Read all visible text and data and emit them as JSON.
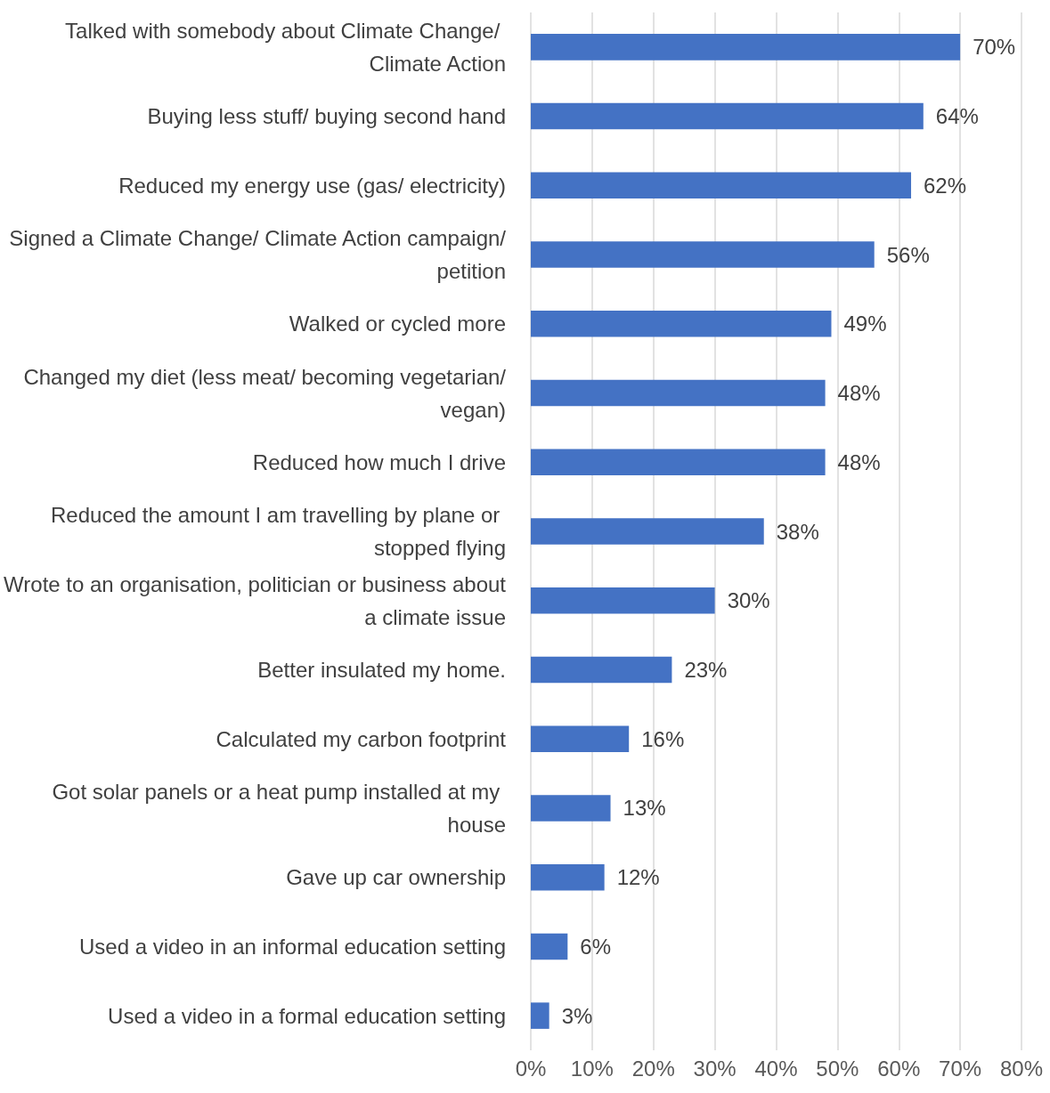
{
  "chart_data": {
    "type": "bar",
    "orientation": "horizontal",
    "categories": [
      "Talked with somebody about Climate Change/ Climate Action",
      "Buying less stuff/ buying second hand",
      "Reduced my energy use (gas/ electricity)",
      "Signed a Climate Change/ Climate Action campaign/ petition",
      "Walked or cycled more",
      "Changed my diet (less meat/ becoming vegetarian/vegan)",
      "Reduced how much I drive",
      "Reduced the amount I am travelling by plane or stopped flying",
      "Wrote to an organisation, politician or business about a climate issue",
      "Better insulated my home.",
      "Calculated my carbon footprint",
      "Got solar panels or a heat pump installed at my house",
      "Gave up car ownership",
      "Used a video in an informal education setting",
      "Used a video in a formal education setting"
    ],
    "values": [
      70,
      64,
      62,
      56,
      49,
      48,
      48,
      38,
      30,
      23,
      16,
      13,
      12,
      6,
      3
    ],
    "value_labels": [
      "70%",
      "64%",
      "62%",
      "56%",
      "49%",
      "48%",
      "48%",
      "38%",
      "30%",
      "23%",
      "16%",
      "13%",
      "12%",
      "6%",
      "3%"
    ],
    "color": "#4472c4",
    "xlim": [
      0,
      80
    ],
    "xticks": [
      {
        "value": 0,
        "label": "0%"
      },
      {
        "value": 10,
        "label": "10%"
      },
      {
        "value": 20,
        "label": "20%"
      },
      {
        "value": 30,
        "label": "30%"
      },
      {
        "value": 40,
        "label": "40%"
      },
      {
        "value": 50,
        "label": "50%"
      },
      {
        "value": 60,
        "label": "60%"
      },
      {
        "value": 70,
        "label": "70%"
      },
      {
        "value": 80,
        "label": "80%"
      }
    ],
    "grid": "x"
  }
}
